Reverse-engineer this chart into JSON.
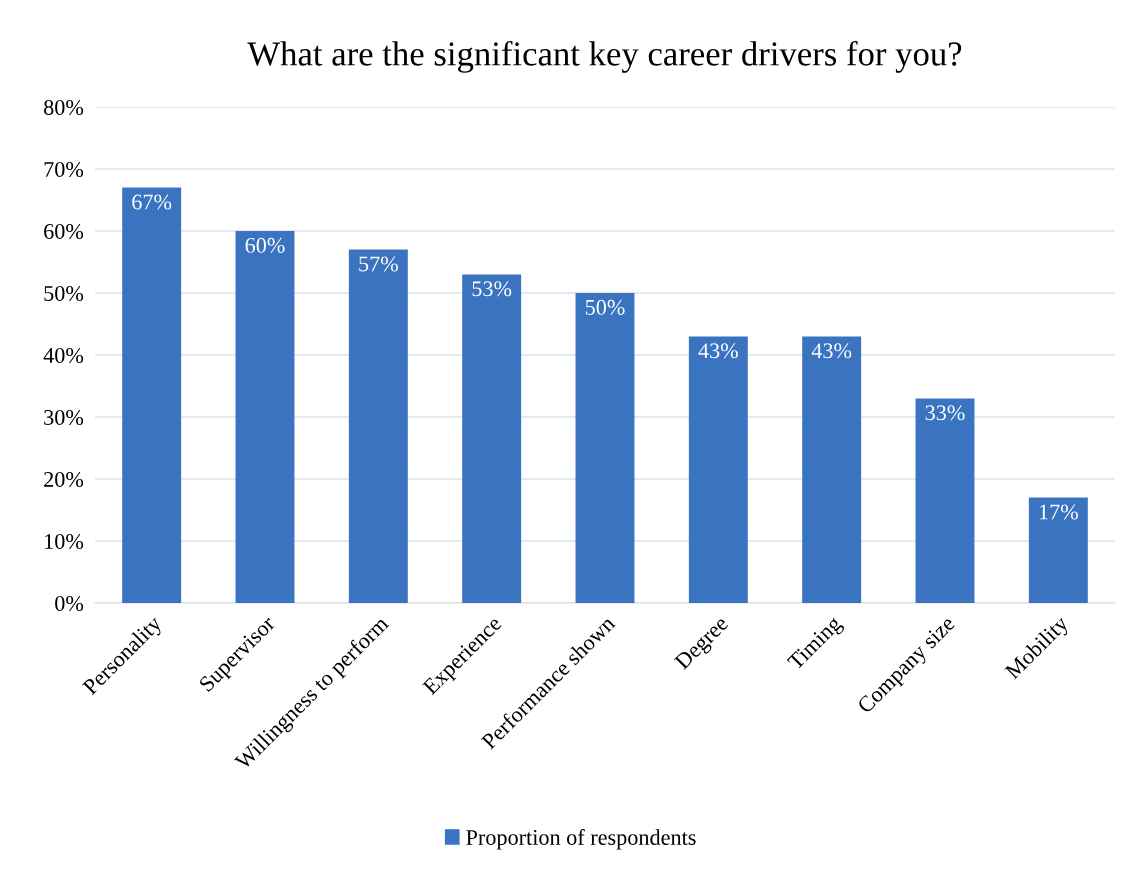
{
  "chart_data": {
    "type": "bar",
    "title": "What are the significant key career drivers for you?",
    "categories": [
      "Personality",
      "Supervisor",
      "Willingness to perform",
      "Experience",
      "Performance shown",
      "Degree",
      "Timing",
      "Company size",
      "Mobility"
    ],
    "series": [
      {
        "name": "Proportion of respondents",
        "color": "#3a74c0",
        "values": [
          67,
          60,
          57,
          53,
          50,
          43,
          43,
          33,
          17
        ],
        "value_labels": [
          "67%",
          "60%",
          "57%",
          "53%",
          "50%",
          "43%",
          "43%",
          "33%",
          "17%"
        ]
      }
    ],
    "ylim": [
      0,
      80
    ],
    "yticks": [
      {
        "value": 0,
        "label": "0%"
      },
      {
        "value": 10,
        "label": "10%"
      },
      {
        "value": 20,
        "label": "20%"
      },
      {
        "value": 30,
        "label": "30%"
      },
      {
        "value": 40,
        "label": "40%"
      },
      {
        "value": 50,
        "label": "50%"
      },
      {
        "value": 60,
        "label": "60%"
      },
      {
        "value": 70,
        "label": "70%"
      },
      {
        "value": 80,
        "label": "80%"
      }
    ],
    "grid": "y",
    "legend": "bottom"
  }
}
